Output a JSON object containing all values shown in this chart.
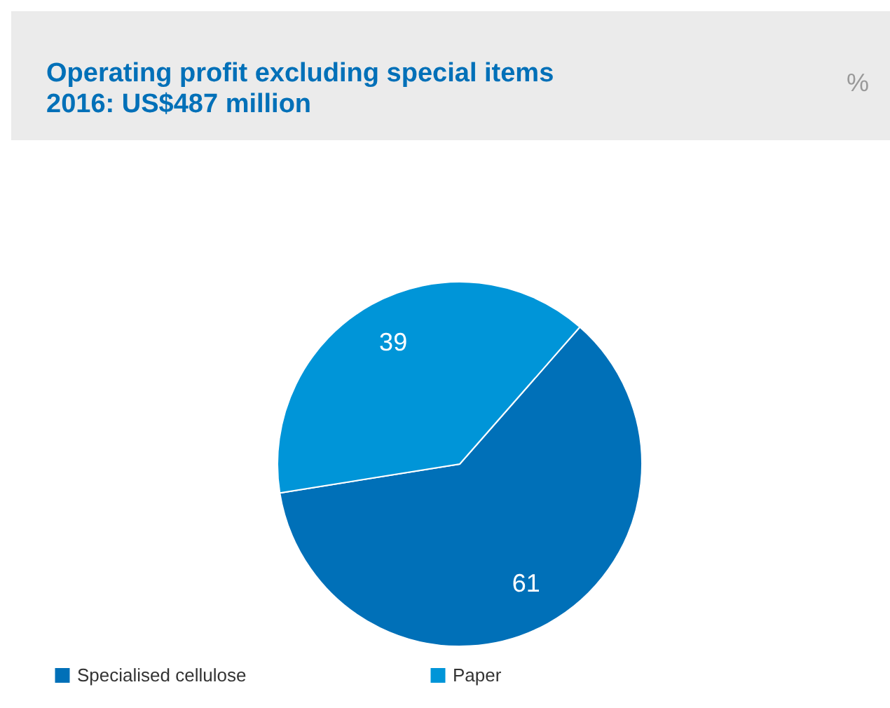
{
  "chart_data": {
    "type": "pie",
    "title": "Operating profit excluding special items",
    "subtitle": "2016: US$487 million",
    "annotations": [
      "%"
    ],
    "categories": [
      "Specialised cellulose",
      "Paper"
    ],
    "values": [
      61,
      39
    ],
    "colors": [
      "#0070b8",
      "#0095d8"
    ],
    "data_labels": true,
    "legend": "bottom"
  }
}
